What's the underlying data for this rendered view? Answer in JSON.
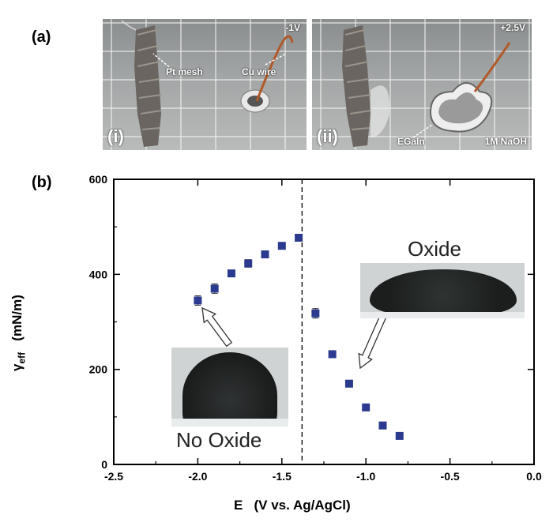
{
  "panel_a": {
    "label": "(a)",
    "photo_i": {
      "roman": "(i)",
      "voltage": "-1V",
      "pt_mesh": "Pt mesh",
      "cu_wire": "Cu wire"
    },
    "photo_ii": {
      "roman": "(ii)",
      "voltage": "+2.5V",
      "egain": "EGaIn",
      "electrolyte": "1M NaOH"
    }
  },
  "panel_b": {
    "label": "(b)",
    "inset_left_label": "No Oxide",
    "inset_right_label": "Oxide",
    "y_title_symbol": "γ",
    "y_title_sub": "eff",
    "y_title_unit": "(mN/m)",
    "x_title": "E   (V vs. Ag/AgCl)"
  },
  "chart_data": {
    "type": "scatter",
    "x": [
      -2.0,
      -1.9,
      -1.8,
      -1.7,
      -1.6,
      -1.5,
      -1.4,
      -1.3,
      -1.2,
      -1.1,
      -1.0,
      -0.9,
      -0.8
    ],
    "y": [
      345,
      370,
      402,
      423,
      442,
      460,
      477,
      318,
      232,
      170,
      120,
      82,
      60
    ],
    "yerr": [
      10,
      10,
      5,
      8,
      5,
      5,
      7,
      10,
      5,
      5,
      5,
      5,
      5
    ],
    "xlim": [
      -2.5,
      0.0
    ],
    "ylim": [
      0,
      600
    ],
    "xticks": [
      -2.5,
      -2.0,
      -1.5,
      -1.0,
      -0.5,
      0.0
    ],
    "xtick_labels": [
      "-2.5",
      "-2.0",
      "-1.5",
      "-1.0",
      "-0.5",
      "0.0"
    ],
    "yticks": [
      0,
      200,
      400,
      600
    ],
    "ytick_labels": [
      "0",
      "200",
      "400",
      "600"
    ],
    "vline_x": -1.38,
    "marker_color": "#2b3a8f",
    "grid": false
  }
}
